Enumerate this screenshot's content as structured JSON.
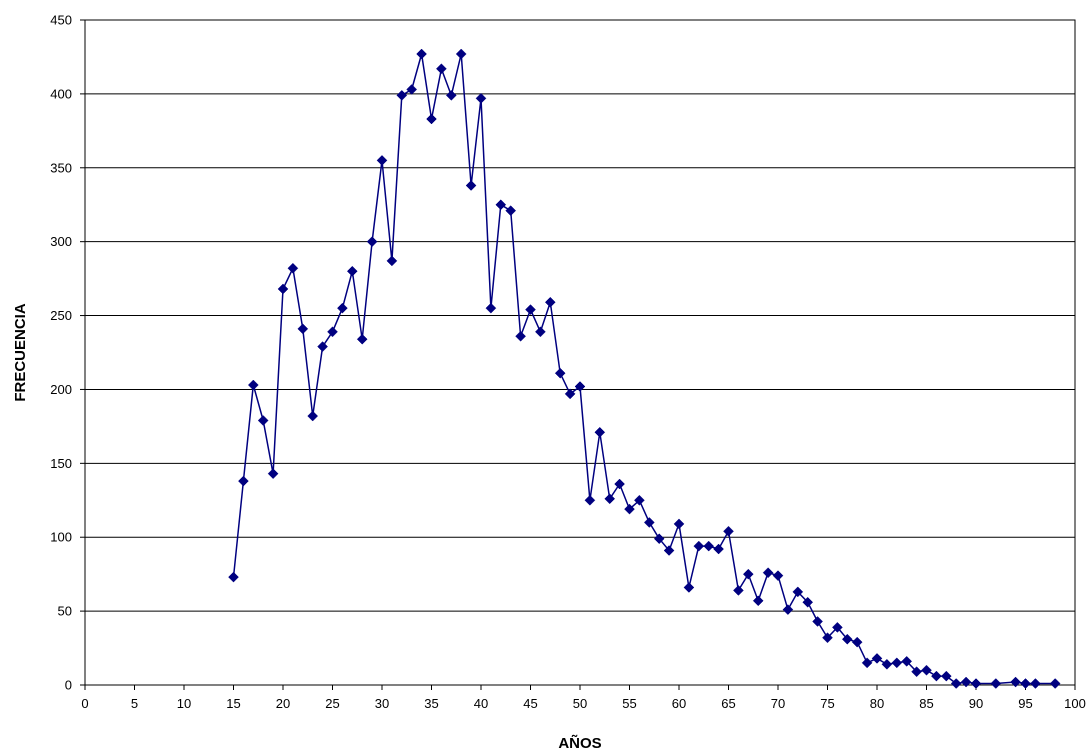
{
  "chart_data": {
    "type": "line",
    "title": "",
    "xlabel": "AÑOS",
    "ylabel": "FRECUENCIA",
    "xlim": [
      0,
      100
    ],
    "ylim": [
      0,
      450
    ],
    "xticks": [
      0,
      5,
      10,
      15,
      20,
      25,
      30,
      35,
      40,
      45,
      50,
      55,
      60,
      65,
      70,
      75,
      80,
      85,
      90,
      95,
      100
    ],
    "yticks": [
      0,
      50,
      100,
      150,
      200,
      250,
      300,
      350,
      400,
      450
    ],
    "grid": "horizontal",
    "legend": "none",
    "series": [
      {
        "color": "#000080",
        "marker": "diamond",
        "x": [
          15,
          16,
          17,
          18,
          19,
          20,
          21,
          22,
          23,
          24,
          25,
          26,
          27,
          28,
          29,
          30,
          31,
          32,
          33,
          34,
          35,
          36,
          37,
          38,
          39,
          40,
          41,
          42,
          43,
          44,
          45,
          46,
          47,
          48,
          49,
          50,
          51,
          52,
          53,
          54,
          55,
          56,
          57,
          58,
          59,
          60,
          61,
          62,
          63,
          64,
          65,
          66,
          67,
          68,
          69,
          70,
          71,
          72,
          73,
          74,
          75,
          76,
          77,
          78,
          79,
          80,
          81,
          82,
          83,
          84,
          85,
          86,
          87,
          88,
          89,
          90,
          92,
          94,
          95,
          96,
          98
        ],
        "y": [
          73,
          138,
          203,
          179,
          143,
          268,
          282,
          241,
          182,
          229,
          239,
          255,
          280,
          234,
          300,
          355,
          287,
          399,
          403,
          427,
          383,
          417,
          399,
          427,
          338,
          397,
          255,
          325,
          321,
          236,
          254,
          239,
          259,
          211,
          197,
          202,
          125,
          171,
          126,
          136,
          119,
          125,
          110,
          99,
          91,
          109,
          66,
          94,
          94,
          92,
          104,
          64,
          75,
          57,
          76,
          74,
          51,
          63,
          56,
          43,
          32,
          39,
          31,
          29,
          15,
          18,
          14,
          15,
          16,
          9,
          10,
          6,
          6,
          1,
          2,
          1,
          1,
          2,
          1,
          1,
          1
        ]
      }
    ]
  }
}
